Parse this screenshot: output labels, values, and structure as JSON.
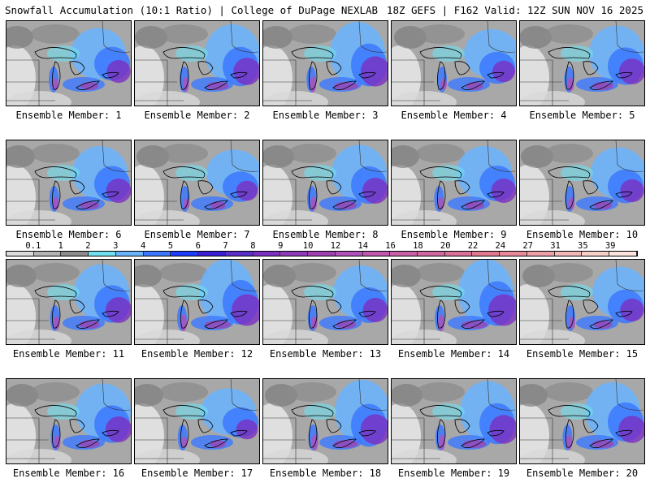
{
  "header": {
    "title_left": "Snowfall Accumulation (10:1 Ratio) | College of DuPage NEXLAB",
    "title_right": "18Z GEFS | F162 Valid: 12Z SUN NOV 16 2025"
  },
  "colorbar": {
    "labels": [
      "0.1",
      "1",
      "2",
      "3",
      "4",
      "5",
      "6",
      "7",
      "8",
      "9",
      "10",
      "12",
      "14",
      "16",
      "18",
      "20",
      "22",
      "24",
      "27",
      "31",
      "35",
      "39"
    ],
    "colors": [
      "#dcdcdc",
      "#b4b4b4",
      "#8c8c8c",
      "#70e0f0",
      "#6ab4ff",
      "#3c78ff",
      "#1e3cff",
      "#3a1fd6",
      "#5a2fc8",
      "#7a30c0",
      "#8e3ab8",
      "#a040b0",
      "#b050b8",
      "#c058b0",
      "#c860a8",
      "#d068a0",
      "#d87098",
      "#e07890",
      "#e88a98",
      "#eea0a8",
      "#f2b8b8",
      "#f6d0c8",
      "#fae4dc"
    ]
  },
  "members": [
    {
      "label": "Ensemble Member: 1",
      "intensity": 0.45
    },
    {
      "label": "Ensemble Member: 2",
      "intensity": 0.6
    },
    {
      "label": "Ensemble Member: 3",
      "intensity": 0.7
    },
    {
      "label": "Ensemble Member: 4",
      "intensity": 0.4
    },
    {
      "label": "Ensemble Member: 5",
      "intensity": 0.55
    },
    {
      "label": "Ensemble Member: 6",
      "intensity": 0.5
    },
    {
      "label": "Ensemble Member: 7",
      "intensity": 0.35
    },
    {
      "label": "Ensemble Member: 8",
      "intensity": 0.55
    },
    {
      "label": "Ensemble Member: 9",
      "intensity": 0.5
    },
    {
      "label": "Ensemble Member: 10",
      "intensity": 0.45
    },
    {
      "label": "Ensemble Member: 11",
      "intensity": 0.55
    },
    {
      "label": "Ensemble Member: 12",
      "intensity": 0.75
    },
    {
      "label": "Ensemble Member: 13",
      "intensity": 0.5
    },
    {
      "label": "Ensemble Member: 14",
      "intensity": 0.75
    },
    {
      "label": "Ensemble Member: 15",
      "intensity": 0.45
    },
    {
      "label": "Ensemble Member: 16",
      "intensity": 0.55
    },
    {
      "label": "Ensemble Member: 17",
      "intensity": 0.35
    },
    {
      "label": "Ensemble Member: 18",
      "intensity": 0.7
    },
    {
      "label": "Ensemble Member: 19",
      "intensity": 0.65
    },
    {
      "label": "Ensemble Member: 20",
      "intensity": 0.6
    }
  ]
}
